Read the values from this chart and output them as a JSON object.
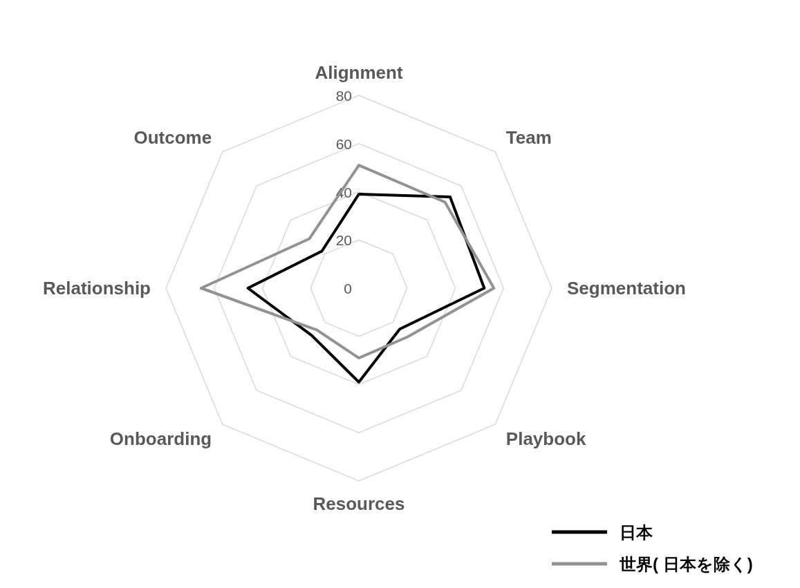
{
  "chart_data": {
    "type": "radar",
    "categories": [
      "Alignment",
      "Team",
      "Segmentation",
      "Playbook",
      "Resources",
      "Onboarding",
      "Relationship",
      "Outcome"
    ],
    "series": [
      {
        "name": "日本",
        "color": "#000000",
        "values": [
          39,
          53.5,
          52,
          24,
          39,
          27.7,
          46,
          21.7
        ]
      },
      {
        "name": "世界( 日本を除く)",
        "color": "#929292",
        "values": [
          51,
          50.5,
          56,
          28.6,
          29,
          24.6,
          65.4,
          29
        ]
      }
    ],
    "ylim": [
      0,
      80
    ],
    "yticks": [
      0,
      20,
      40,
      60,
      80
    ],
    "grid": true,
    "legend": "bottom right"
  }
}
